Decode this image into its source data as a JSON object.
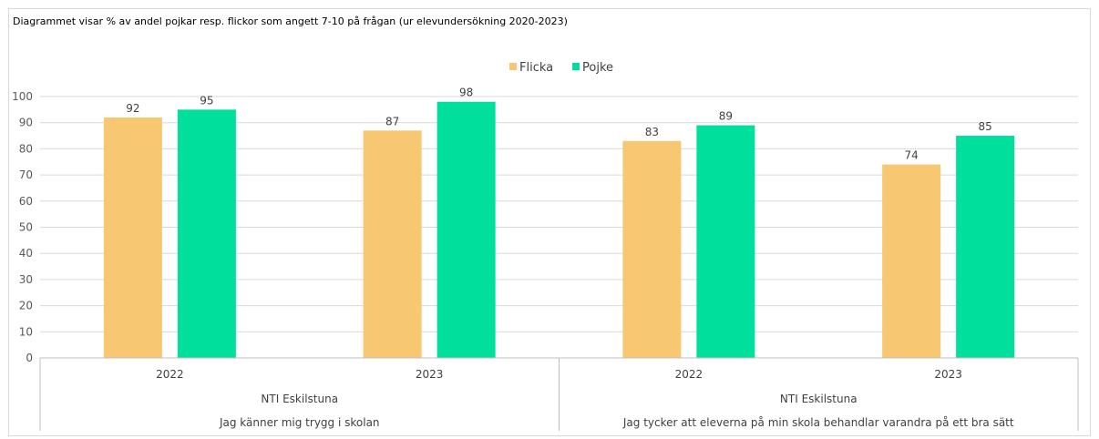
{
  "title": "Diagrammet visar % av andel pojkar resp. flickor som angett 7-10 på frågan (ur elevundersökning 2020-2023)",
  "colors": {
    "Flicka": "#f8c772",
    "Pojke": "#00df9b",
    "grid": "#d9d9d9",
    "axis": "#bfbfbf"
  },
  "chart_data": {
    "type": "bar",
    "title": "Diagrammet visar % av andel pojkar resp. flickor som angett 7-10 på frågan (ur elevundersökning 2020-2023)",
    "ylim": [
      0,
      100
    ],
    "yticks": [
      0,
      10,
      20,
      30,
      40,
      50,
      60,
      70,
      80,
      90,
      100
    ],
    "grid": true,
    "legend": "top-center",
    "categories": [
      "2022",
      "2023",
      "2022",
      "2023"
    ],
    "school_labels": [
      "NTI Eskilstuna",
      "NTI Eskilstuna"
    ],
    "question_labels": [
      "Jag känner mig trygg i skolan",
      "Jag tycker att eleverna på min skola behandlar varandra på ett bra sätt"
    ],
    "series": [
      {
        "name": "Flicka",
        "color": "#f8c772",
        "values": [
          92,
          87,
          83,
          74
        ]
      },
      {
        "name": "Pojke",
        "color": "#00df9b",
        "values": [
          95,
          98,
          89,
          85
        ]
      }
    ]
  }
}
